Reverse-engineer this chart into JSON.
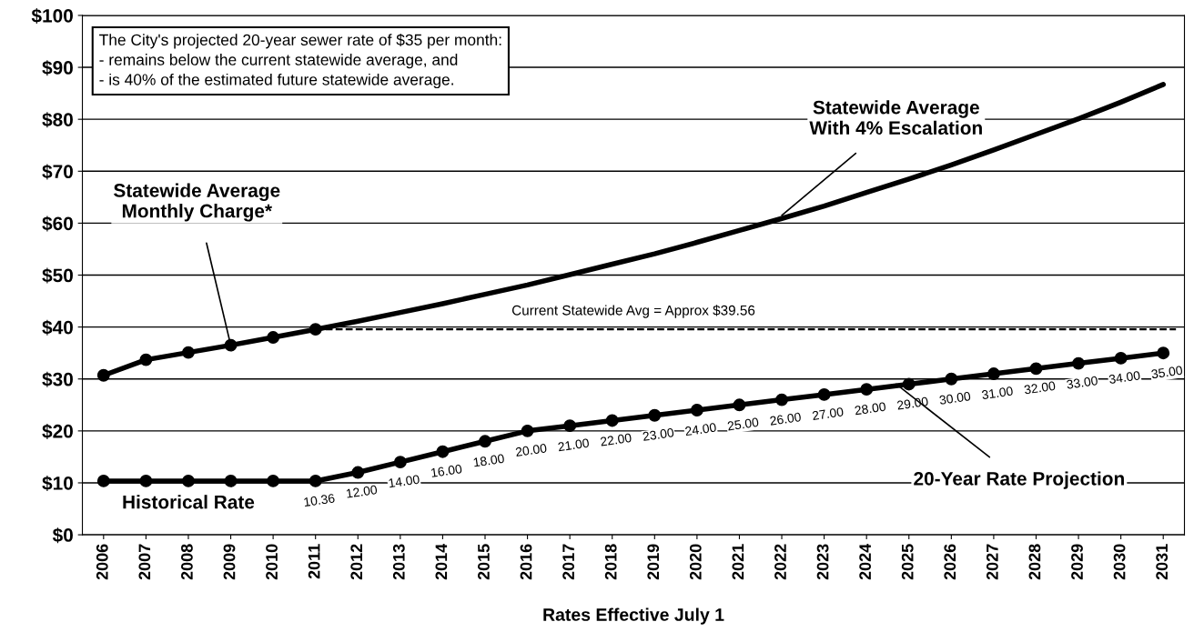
{
  "chart_data": {
    "type": "line",
    "xlabel": "Rates Effective July 1",
    "xlim": [
      2005.5,
      2031.5
    ],
    "xticks": [
      2006,
      2007,
      2008,
      2009,
      2010,
      2011,
      2012,
      2013,
      2014,
      2015,
      2016,
      2017,
      2018,
      2019,
      2020,
      2021,
      2022,
      2023,
      2024,
      2025,
      2026,
      2027,
      2028,
      2029,
      2030,
      2031
    ],
    "ylim": [
      0,
      100
    ],
    "yticks": [
      {
        "value": 0,
        "label": "$0"
      },
      {
        "value": 10,
        "label": "$10"
      },
      {
        "value": 20,
        "label": "$20"
      },
      {
        "value": 30,
        "label": "$30"
      },
      {
        "value": 40,
        "label": "$40"
      },
      {
        "value": 50,
        "label": "$50"
      },
      {
        "value": 60,
        "label": "$60"
      },
      {
        "value": 70,
        "label": "$70"
      },
      {
        "value": 80,
        "label": "$80"
      },
      {
        "value": 90,
        "label": "$90"
      },
      {
        "value": 100,
        "label": "$100"
      }
    ],
    "grid": "y",
    "legend": false,
    "line_style": "solid",
    "series": [
      {
        "color": "#000000",
        "marker": "circle",
        "x": [
          2006,
          2007,
          2008,
          2009,
          2010,
          2011
        ],
        "values": [
          30.7,
          33.7,
          35.1,
          36.5,
          38.0,
          39.56
        ]
      },
      {
        "color": "#000000",
        "marker": "none",
        "x": [
          2011,
          2012,
          2013,
          2014,
          2015,
          2016,
          2017,
          2018,
          2019,
          2020,
          2021,
          2022,
          2023,
          2024,
          2025,
          2026,
          2027,
          2028,
          2029,
          2030,
          2031
        ],
        "values": [
          39.56,
          41.1,
          42.8,
          44.5,
          46.3,
          48.1,
          50.1,
          52.1,
          54.1,
          56.3,
          58.6,
          60.9,
          63.3,
          65.9,
          68.5,
          71.2,
          74.1,
          77.1,
          80.1,
          83.3,
          86.7
        ]
      },
      {
        "color": "#000000",
        "marker": "circle",
        "x": [
          2006,
          2007,
          2008,
          2009,
          2010,
          2011,
          2012,
          2013,
          2014,
          2015,
          2016,
          2017,
          2018,
          2019,
          2020,
          2021,
          2022,
          2023,
          2024,
          2025,
          2026,
          2027,
          2028,
          2029,
          2030,
          2031
        ],
        "values": [
          10.36,
          10.36,
          10.36,
          10.36,
          10.36,
          10.36,
          12,
          14,
          16,
          18,
          20,
          21,
          22,
          23,
          24,
          25,
          26,
          27,
          28,
          29,
          30,
          31,
          32,
          33,
          34,
          35
        ],
        "value_labels": [
          null,
          null,
          null,
          null,
          null,
          "10.36",
          "12.00",
          "14.00",
          "16.00",
          "18.00",
          "20.00",
          "21.00",
          "22.00",
          "23.00",
          "24.00",
          "25.00",
          "26.00",
          "27.00",
          "28.00",
          "29.00",
          "30.00",
          "31.00",
          "32.00",
          "33.00",
          "34.00",
          "35.00"
        ]
      }
    ],
    "ref_lines": [
      {
        "axis": "y",
        "value": 39.56,
        "label": "Current Statewide Avg = Approx $39.56",
        "line_style": "dashed",
        "color": "#000000"
      }
    ],
    "annotations": [
      "The City's projected 20-year sewer rate of $35 per month:\n- remains below the current statewide average, and\n- is 40% of the estimated future statewide average.",
      {
        "text": "Statewide Average\nMonthly Charge*",
        "x": 2009,
        "y": 36.5
      },
      {
        "text": "Statewide Average\nWith 4% Escalation",
        "x": 2022,
        "y": 61.5
      },
      {
        "text": "Historical Rate",
        "x": 2008,
        "y": 10.36
      },
      {
        "text": "20-Year Rate Projection",
        "x": 2024.7,
        "y": 29
      }
    ]
  }
}
